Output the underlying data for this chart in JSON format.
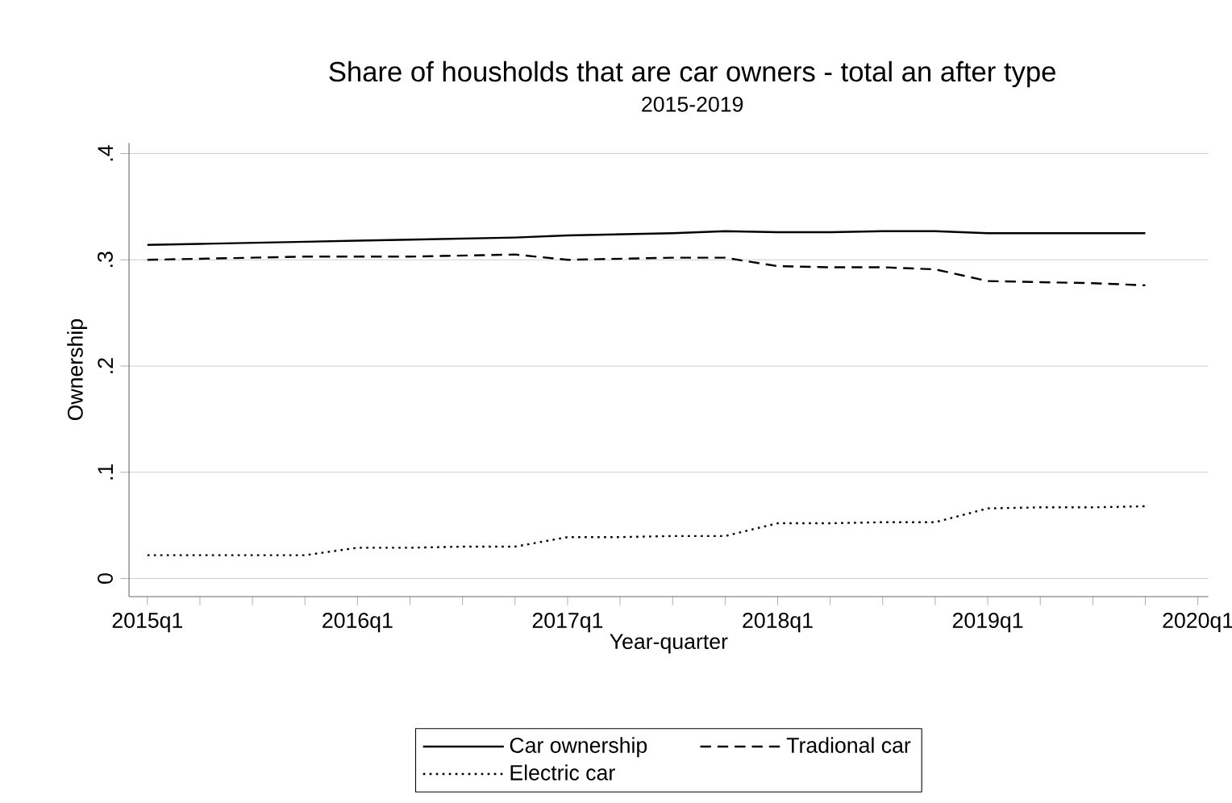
{
  "chart_data": {
    "type": "line",
    "title": "Share of housholds that are car owners - total an after type",
    "subtitle": "2015-2019",
    "xlabel": "Year-quarter",
    "ylabel": "Ownership",
    "categories": [
      "2015q1",
      null,
      null,
      null,
      "2016q1",
      null,
      null,
      null,
      "2017q1",
      null,
      null,
      null,
      "2018q1",
      null,
      null,
      null,
      "2019q1",
      null,
      null,
      null,
      "2020q1"
    ],
    "series": [
      {
        "name": "Car ownership",
        "color": "#000000",
        "line_style": "solid",
        "values": [
          0.314,
          0.315,
          0.316,
          0.317,
          0.318,
          0.319,
          0.32,
          0.321,
          0.323,
          0.324,
          0.325,
          0.327,
          0.326,
          0.326,
          0.327,
          0.327,
          0.325,
          0.325,
          0.325,
          0.325,
          null
        ]
      },
      {
        "name": "Tradional car",
        "color": "#000000",
        "line_style": "dashed",
        "values": [
          0.3,
          0.301,
          0.302,
          0.303,
          0.303,
          0.303,
          0.304,
          0.305,
          0.3,
          0.301,
          0.302,
          0.302,
          0.294,
          0.293,
          0.293,
          0.291,
          0.28,
          0.279,
          0.278,
          0.276,
          null
        ]
      },
      {
        "name": "Electric car",
        "color": "#000000",
        "line_style": "dotted",
        "values": [
          0.022,
          0.022,
          0.022,
          0.022,
          0.029,
          0.029,
          0.03,
          0.03,
          0.039,
          0.039,
          0.04,
          0.04,
          0.052,
          0.052,
          0.053,
          0.053,
          0.066,
          0.067,
          0.067,
          0.068,
          null
        ]
      }
    ],
    "ylim": [
      -0.017,
      0.41
    ],
    "yticks": [
      {
        "value": 0,
        "label": "0"
      },
      {
        "value": 0.1,
        "label": ".1"
      },
      {
        "value": 0.2,
        "label": ".2"
      },
      {
        "value": 0.3,
        "label": ".3"
      },
      {
        "value": 0.4,
        "label": ".4"
      }
    ],
    "grid": "y",
    "legend": "bottom",
    "marker": "none"
  }
}
